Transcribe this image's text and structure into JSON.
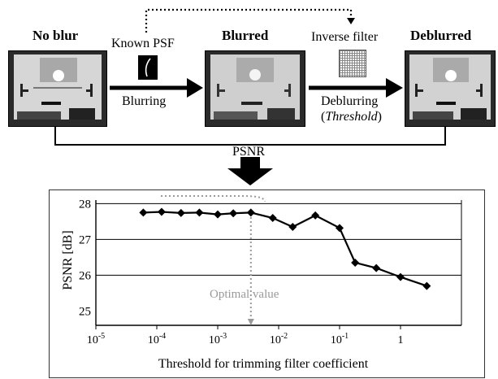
{
  "pipeline": {
    "no_blur_label": "No blur",
    "blurred_label": "Blurred",
    "deblurred_label": "Deblurred",
    "known_psf_label": "Known PSF",
    "inverse_filter_label": "Inverse filter",
    "blurring_label": "Blurring",
    "deblurring_label": "Deblurring",
    "threshold_open": "(",
    "threshold_label": "Threshold",
    "threshold_close": ")",
    "psnr_label": "PSNR"
  },
  "chart_data": {
    "type": "line",
    "xscale": "log",
    "ylabel": "PSNR [dB]",
    "xlabel": "Threshold for trimming filter coefficient",
    "yticks": [
      "25",
      "26",
      "27",
      "28"
    ],
    "xticks": [
      "10-5",
      "10-4",
      "10-3",
      "10-2",
      "10-1",
      "1"
    ],
    "xtick_values": [
      1e-05,
      0.0001,
      0.001,
      0.01,
      0.1,
      1
    ],
    "ylim": [
      24.6,
      28.1
    ],
    "xlim": [
      1e-05,
      10
    ],
    "grid": "horizontal",
    "annotation": "Optimal value",
    "optimal_x": 0.0035,
    "series": [
      {
        "x": [
          6e-05,
          0.00012,
          0.00025,
          0.0005,
          0.001,
          0.0018,
          0.0035,
          0.008,
          0.017,
          0.04,
          0.1,
          0.18,
          0.4,
          1.0,
          2.7
        ],
        "y": [
          27.75,
          27.77,
          27.74,
          27.75,
          27.7,
          27.73,
          27.75,
          27.6,
          27.35,
          27.67,
          27.32,
          26.35,
          26.2,
          25.95,
          25.7
        ]
      }
    ]
  }
}
